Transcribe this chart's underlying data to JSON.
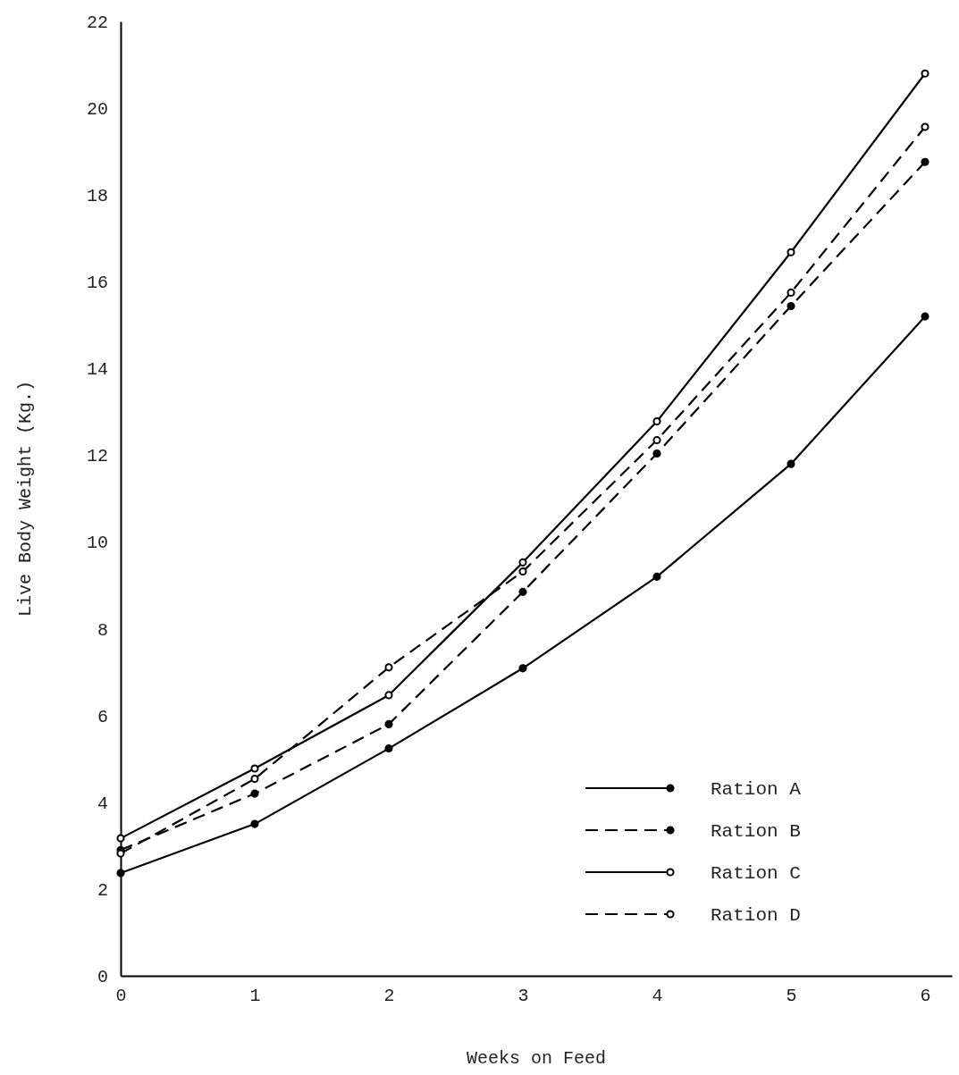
{
  "chart_data": {
    "type": "line",
    "xlabel": "Weeks on Feed",
    "ylabel": "Live Body Weight (Kg.)",
    "x": [
      0,
      1,
      2,
      3,
      4,
      5,
      6
    ],
    "xlim": [
      0,
      6.2
    ],
    "xticks": [
      0,
      1,
      2,
      3,
      4,
      5,
      6
    ],
    "ylim": [
      0,
      22
    ],
    "yticks": [
      0,
      2,
      4,
      6,
      8,
      10,
      12,
      14,
      16,
      18,
      20,
      22
    ],
    "grid": false,
    "legend": "bottom right",
    "marker": "circle",
    "series": [
      {
        "name": "Ration A",
        "color": "#000000",
        "line_style": "solid",
        "values": [
          2.37,
          3.5,
          5.24,
          7.09,
          9.2,
          11.8,
          15.2
        ]
      },
      {
        "name": "Ration B",
        "color": "#000000",
        "line_style": "dashed",
        "values": [
          2.9,
          4.2,
          5.8,
          8.85,
          12.04,
          15.44,
          18.76
        ]
      },
      {
        "name": "Ration C",
        "color": "#000000",
        "line_style": "solid",
        "values": [
          3.17,
          4.78,
          6.47,
          9.53,
          12.78,
          16.68,
          20.8
        ]
      },
      {
        "name": "Ration D",
        "color": "#000000",
        "line_style": "dashed",
        "values": [
          2.82,
          4.54,
          7.11,
          9.32,
          12.35,
          15.75,
          19.57
        ]
      }
    ]
  }
}
